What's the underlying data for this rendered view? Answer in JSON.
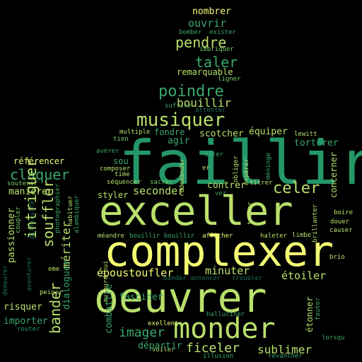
{
  "colors": {
    "background": "#000000",
    "bright_yellow": "#f3fb73",
    "light_green": "#b9e06b",
    "mid_green": "#7ccf6a",
    "sea_green": "#3aa76b",
    "teal_green": "#249668",
    "dark_teal": "#1f6f5c",
    "deep_teal": "#14524a"
  },
  "words": {
    "nombrer": "nombrer",
    "bomber": "bomber",
    "exister": "exister",
    "ouvrir": "ouvrir",
    "imbriquer": "imbriquer",
    "pendre": "pendre",
    "taler": "taler",
    "remarquable": "remarquable",
    "ligner": "ligner",
    "poindre": "poindre",
    "suffire": "suffire",
    "bouillir": "bouillir",
    "attenter": "attenter",
    "musiquer": "musiquer",
    "multiple": "multiple",
    "tien": "tien",
    "fondre": "fondre",
    "agir": "agir",
    "scotcher": "scotcher",
    "equiper": "équiper",
    "lewitt": "lewitt",
    "torturer": "torturer",
    "faillir": "faillir",
    "referencer": "référencer",
    "claquer": "claquer",
    "soutenir": "soutenir",
    "maniere": "maniérer",
    "averer": "avérer",
    "sou": "sou",
    "composer": "composer",
    "time": "time",
    "sequencer": "séquencer",
    "sacrer": "sacrer",
    "seconder": "seconder",
    "styler": "styler",
    "dater": "dater",
    "redemander": "redemander",
    "er": "er",
    "obliger": "obliger",
    "esperer": "espérer",
    "meninge": "méninge",
    "concerner": "concerner",
    "celer": "celer",
    "contrer": "contrer",
    "ver": "ver",
    "titrer": "titrer",
    "exceller": "exceller",
    "tramer": "tramer",
    "brillanter": "brillanter",
    "boire": "boire",
    "douer": "douer",
    "causer": "causer",
    "meandre": "méandre",
    "bouillir_bouillir": "bouillir bouillir",
    "afficher": "afficher",
    "haleter": "haleter",
    "limbe": "limbe",
    "brio": "brio",
    "complexer": "complexer",
    "intriguer": "intriguer",
    "souffler": "souffler",
    "meriter": "mériter",
    "bander": "bander",
    "passionner": "passionner",
    "coupler": "coupler",
    "difficulte": "difficulté",
    "photographier": "photographier",
    "habituer": "habituer",
    "alambiquer": "alambiquer",
    "demeurer": "demeurer",
    "aventurer": "aventurer",
    "peiner": "peiner",
    "eme": "eme",
    "dialoguer": "dialoguer",
    "risquer": "risquer",
    "importer": "importer",
    "router": "router",
    "epoustoufler": "époustoufler",
    "minuter": "minuter",
    "etoiler": "étoiler",
    "aujourd_hui": "aujourd'hui",
    "bander_annoncer": "bander annoncer",
    "troubler": "troubler",
    "oeuvrer": "oeuvrer",
    "combattre": "combattre",
    "fasciner": "fasciner",
    "imager": "imager",
    "etonner": "étonner",
    "fauter": "fauter",
    "lorsqu": "lorsqu",
    "halluciner": "halluciner",
    "monder": "monder",
    "exellent": "exellent",
    "voiler": "voiler",
    "illusion": "illusion",
    "revancher": "revancher",
    "departir": "départir",
    "ficeler": "ficeler",
    "sublimer": "sublimer"
  }
}
